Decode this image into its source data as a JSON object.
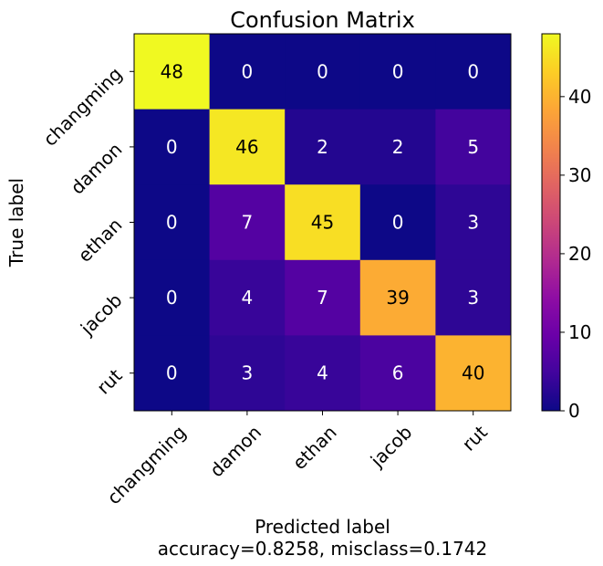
{
  "chart_data": {
    "type": "heatmap",
    "title": "Confusion Matrix",
    "xlabel": "Predicted label",
    "xlabel_sub": "accuracy=0.8258, misclass=0.1742",
    "ylabel": "True label",
    "x_categories": [
      "changming",
      "damon",
      "ethan",
      "jacob",
      "rut"
    ],
    "y_categories": [
      "changming",
      "damon",
      "ethan",
      "jacob",
      "rut"
    ],
    "matrix": [
      [
        48,
        0,
        0,
        0,
        0
      ],
      [
        0,
        46,
        2,
        2,
        5
      ],
      [
        0,
        7,
        45,
        0,
        3
      ],
      [
        0,
        4,
        7,
        39,
        3
      ],
      [
        0,
        3,
        4,
        6,
        40
      ]
    ],
    "colormap": "plasma",
    "colorbar": {
      "range": [
        0,
        48
      ],
      "ticks": [
        0,
        10,
        20,
        30,
        40
      ]
    }
  }
}
